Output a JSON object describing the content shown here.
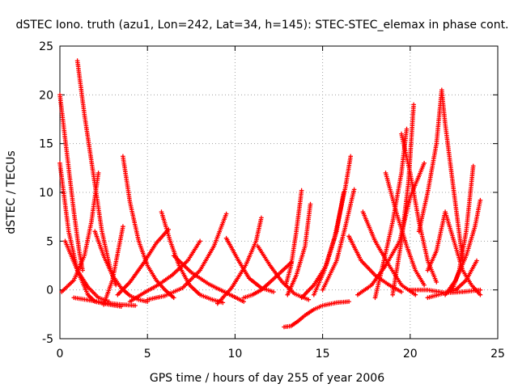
{
  "chart_data": {
    "type": "scatter",
    "title": "dSTEC Iono. truth (azu1, Lon=242, Lat=34, h=145): STEC-STEC_elemax in phase cont.",
    "xlabel": "GPS time / hours of day 255 of year 2006",
    "ylabel": "dSTEC  / TECUs",
    "xlim": [
      0,
      25
    ],
    "ylim": [
      -5,
      25
    ],
    "xticks": [
      0,
      5,
      10,
      15,
      20,
      25
    ],
    "yticks": [
      -5,
      0,
      5,
      10,
      15,
      20,
      25
    ],
    "grid": true,
    "marker": "plus",
    "color": "#ff0000",
    "series": [
      {
        "x": [
          0.0,
          0.4,
          0.8,
          1.1,
          1.3
        ],
        "y": [
          20.0,
          14.0,
          8.0,
          4.0,
          2.0
        ]
      },
      {
        "x": [
          0.0,
          0.5,
          1.0,
          1.6,
          2.0,
          2.8,
          3.5
        ],
        "y": [
          13.0,
          6.0,
          2.0,
          -0.5,
          -1.2,
          -1.5,
          -1.7
        ]
      },
      {
        "x": [
          0.1,
          0.8,
          1.4,
          1.8,
          2.2
        ],
        "y": [
          -0.2,
          1.0,
          3.5,
          7.0,
          12.0
        ]
      },
      {
        "x": [
          0.3,
          1.0,
          1.6,
          2.2,
          2.8
        ],
        "y": [
          5.0,
          2.0,
          0.3,
          -0.8,
          -1.2
        ]
      },
      {
        "x": [
          1.0,
          1.4,
          1.9,
          2.4,
          2.9,
          3.2
        ],
        "y": [
          23.5,
          18.0,
          12.0,
          6.0,
          2.0,
          0.5
        ]
      },
      {
        "x": [
          0.8,
          1.5,
          2.5,
          3.5,
          4.3
        ],
        "y": [
          -0.8,
          -1.0,
          -1.3,
          -1.5,
          -1.6
        ]
      },
      {
        "x": [
          2.0,
          2.5,
          3.0,
          3.5,
          4.0,
          4.5,
          5.0
        ],
        "y": [
          6.0,
          3.5,
          1.5,
          0.2,
          -0.6,
          -1.0,
          -1.2
        ]
      },
      {
        "x": [
          2.5,
          3.0,
          3.6
        ],
        "y": [
          -1.5,
          1.0,
          6.5
        ]
      },
      {
        "x": [
          3.6,
          4.0,
          4.5,
          5.0,
          5.5,
          6.0,
          6.5
        ],
        "y": [
          13.7,
          9.0,
          5.0,
          2.5,
          1.0,
          0.0,
          -0.8
        ]
      },
      {
        "x": [
          3.3,
          4.0,
          4.8,
          5.5,
          6.2
        ],
        "y": [
          -0.5,
          0.8,
          2.8,
          4.8,
          6.2
        ]
      },
      {
        "x": [
          4.0,
          4.8,
          5.6,
          6.4,
          7.3,
          8.0
        ],
        "y": [
          -1.2,
          -0.3,
          0.5,
          1.5,
          3.0,
          5.0
        ]
      },
      {
        "x": [
          5.8,
          6.3,
          6.8,
          7.4,
          8.0,
          8.7,
          9.3
        ],
        "y": [
          8.0,
          5.0,
          2.5,
          0.5,
          -0.5,
          -1.0,
          -1.3
        ]
      },
      {
        "x": [
          5.0,
          6.0,
          7.0,
          8.0,
          8.8,
          9.5
        ],
        "y": [
          -1.0,
          -0.6,
          0.2,
          2.0,
          4.5,
          7.8
        ]
      },
      {
        "x": [
          6.5,
          7.5,
          8.5,
          9.5,
          10.5
        ],
        "y": [
          3.5,
          1.8,
          0.6,
          -0.3,
          -1.2
        ]
      },
      {
        "x": [
          9.5,
          10.2,
          10.8,
          11.5,
          12.2
        ],
        "y": [
          5.3,
          3.0,
          1.2,
          0.2,
          -0.2
        ]
      },
      {
        "x": [
          9.0,
          9.8,
          10.6,
          11.2,
          11.5
        ],
        "y": [
          -1.4,
          0.2,
          2.5,
          5.0,
          7.4
        ]
      },
      {
        "x": [
          10.5,
          11.0,
          11.5,
          12.0,
          12.6,
          13.2
        ],
        "y": [
          -0.8,
          -0.5,
          0.0,
          0.8,
          1.8,
          2.8
        ]
      },
      {
        "x": [
          11.3,
          12.0,
          12.7,
          13.4,
          14.2
        ],
        "y": [
          4.5,
          2.5,
          0.8,
          -0.4,
          -1.0
        ]
      },
      {
        "x": [
          12.8,
          13.2,
          13.6,
          14.0,
          14.5,
          15.0,
          15.8,
          16.5
        ],
        "y": [
          -3.8,
          -3.7,
          -3.2,
          -2.6,
          -2.0,
          -1.6,
          -1.3,
          -1.2
        ]
      },
      {
        "x": [
          12.9,
          13.2,
          13.5,
          13.8
        ],
        "y": [
          0.5,
          2.5,
          6.0,
          10.2
        ]
      },
      {
        "x": [
          13.0,
          13.5,
          14.0,
          14.3
        ],
        "y": [
          -0.5,
          1.5,
          4.5,
          8.8
        ]
      },
      {
        "x": [
          13.8,
          14.5,
          15.2,
          15.8,
          16.2
        ],
        "y": [
          -0.8,
          0.5,
          2.5,
          6.0,
          10.0
        ]
      },
      {
        "x": [
          14.5,
          15.1,
          15.7,
          16.3,
          16.6
        ],
        "y": [
          -0.5,
          2.0,
          5.5,
          10.5,
          13.7
        ]
      },
      {
        "x": [
          15.0,
          15.8,
          16.3,
          16.8
        ],
        "y": [
          0.0,
          3.0,
          6.5,
          10.3
        ]
      },
      {
        "x": [
          16.5,
          17.2,
          18.0,
          18.8,
          19.5
        ],
        "y": [
          5.5,
          3.0,
          1.5,
          0.5,
          -0.2
        ]
      },
      {
        "x": [
          17.0,
          17.8,
          18.6,
          19.4,
          20.0,
          20.8
        ],
        "y": [
          -0.5,
          0.5,
          2.5,
          5.0,
          9.5,
          13.0
        ]
      },
      {
        "x": [
          17.3,
          18.0,
          18.8,
          19.5,
          20.3
        ],
        "y": [
          8.0,
          5.0,
          2.5,
          0.5,
          -0.5
        ]
      },
      {
        "x": [
          18.0,
          18.5,
          19.0,
          19.5,
          19.8
        ],
        "y": [
          -0.8,
          3.0,
          7.0,
          12.0,
          16.5
        ]
      },
      {
        "x": [
          18.6,
          19.2,
          19.8,
          20.3,
          20.8
        ],
        "y": [
          12.0,
          8.0,
          4.5,
          2.0,
          0.5
        ]
      },
      {
        "x": [
          19.5,
          20.0,
          20.5,
          21.0,
          21.5
        ],
        "y": [
          16.0,
          12.0,
          7.0,
          3.0,
          0.8
        ]
      },
      {
        "x": [
          19.0,
          19.5,
          19.9,
          20.2
        ],
        "y": [
          -0.5,
          5.0,
          11.0,
          19.0
        ]
      },
      {
        "x": [
          20.5,
          21.0,
          21.5,
          21.8,
          22.0,
          22.5,
          23.0
        ],
        "y": [
          6.0,
          10.0,
          15.0,
          20.5,
          17.0,
          10.0,
          3.0
        ]
      },
      {
        "x": [
          21.0,
          21.5,
          22.0,
          22.5,
          23.0,
          23.5,
          24.0
        ],
        "y": [
          2.0,
          4.0,
          8.0,
          5.0,
          2.0,
          0.5,
          -0.5
        ]
      },
      {
        "x": [
          22.0,
          22.6,
          23.2,
          23.7,
          24.0
        ],
        "y": [
          -0.5,
          1.0,
          3.5,
          6.5,
          9.2
        ]
      },
      {
        "x": [
          22.4,
          22.8,
          23.2,
          23.6
        ],
        "y": [
          0.0,
          2.0,
          6.0,
          12.7
        ]
      },
      {
        "x": [
          21.0,
          21.8,
          22.6,
          23.2,
          23.8
        ],
        "y": [
          -0.8,
          -0.4,
          0.0,
          1.0,
          3.0
        ]
      },
      {
        "x": [
          20.0,
          21.0,
          22.0,
          23.0,
          24.0
        ],
        "y": [
          0.0,
          0.0,
          -0.3,
          -0.2,
          0.0
        ]
      }
    ]
  }
}
